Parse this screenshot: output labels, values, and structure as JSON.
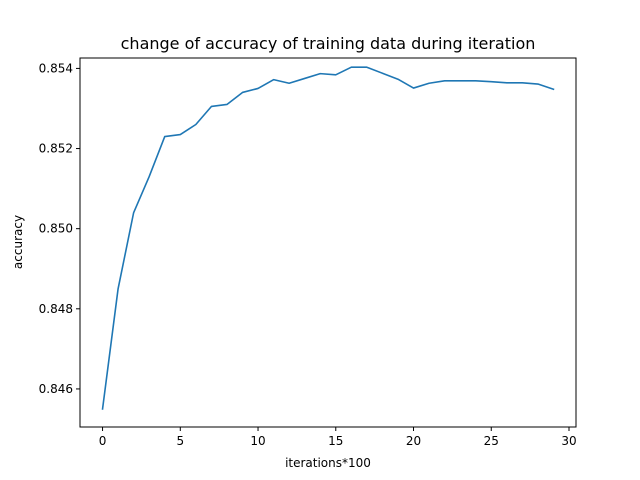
{
  "chart_data": {
    "type": "line",
    "title": "change of accuracy of training data during iteration",
    "xlabel": "iterations*100",
    "ylabel": "accuracy",
    "xlim": [
      -1.45,
      30.45
    ],
    "ylim": [
      0.84505,
      0.85426
    ],
    "xticks": [
      0,
      5,
      10,
      15,
      20,
      25,
      30
    ],
    "xtick_labels": [
      "0",
      "5",
      "10",
      "15",
      "20",
      "25",
      "30"
    ],
    "yticks": [
      0.846,
      0.848,
      0.85,
      0.852,
      0.854
    ],
    "ytick_labels": [
      "0.846",
      "0.848",
      "0.850",
      "0.852",
      "0.854"
    ],
    "grid": false,
    "series": [
      {
        "color": "#1f77b4",
        "x": [
          0,
          1,
          2,
          3,
          4,
          5,
          6,
          7,
          8,
          9,
          10,
          11,
          12,
          13,
          14,
          15,
          16,
          17,
          18,
          19,
          20,
          21,
          22,
          23,
          24,
          25,
          26,
          27,
          28,
          29
        ],
        "y": [
          0.8455,
          0.8485,
          0.8504,
          0.8513,
          0.8523,
          0.85235,
          0.8526,
          0.85305,
          0.8531,
          0.8534,
          0.8535,
          0.85372,
          0.85363,
          0.85375,
          0.85387,
          0.85384,
          0.85403,
          0.85403,
          0.85388,
          0.85373,
          0.85351,
          0.85363,
          0.85369,
          0.85369,
          0.85369,
          0.85367,
          0.85364,
          0.85364,
          0.85361,
          0.85348
        ]
      }
    ]
  }
}
